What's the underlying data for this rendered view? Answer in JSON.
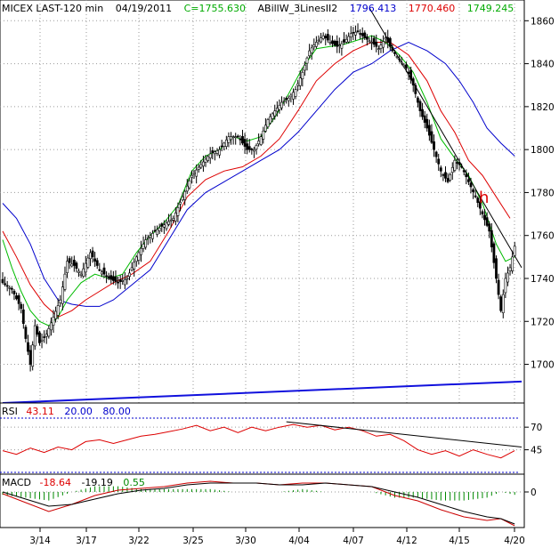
{
  "header": {
    "symbol_label": "MICEX LAST-120 min",
    "date": "04/19/2011",
    "close_text": "C=1755.630",
    "indicator_name": "ABillW_3LinesII2",
    "line_values": [
      "1796.413",
      "1770.460",
      "1749.245"
    ]
  },
  "rsi_header": {
    "name": "RSI",
    "value": "43.11",
    "low": "20.00",
    "high": "80.00"
  },
  "macd_header": {
    "name": "MACD",
    "v1": "-18.64",
    "v2": "-19.19",
    "v3": "0.55"
  },
  "annotation": "h",
  "colors": {
    "candles": "#000000",
    "blue_line": "#0000cc",
    "red_line": "#dd0000",
    "green_line": "#00bb00",
    "support_line": "#1010dd",
    "header_c": "#00aa00",
    "macd_hist": "#008800"
  },
  "chart_data": [
    {
      "type": "candlestick",
      "name": "price",
      "x_tick_labels": [
        "3/14",
        "3/17",
        "3/22",
        "3/25",
        "3/30",
        "4/04",
        "4/07",
        "4/12",
        "4/15",
        "4/20"
      ],
      "y_tick_labels": [
        "1860",
        "1840",
        "1820",
        "1800",
        "1780",
        "1760",
        "1740",
        "1720",
        "1700"
      ],
      "ylim": [
        1682,
        1868
      ],
      "close_path": [
        [
          0,
          1738
        ],
        [
          4,
          1735
        ],
        [
          8,
          1726
        ],
        [
          10,
          1712
        ],
        [
          12,
          1700
        ],
        [
          14,
          1718
        ],
        [
          16,
          1710
        ],
        [
          19,
          1714
        ],
        [
          22,
          1722
        ],
        [
          25,
          1730
        ],
        [
          28,
          1748
        ],
        [
          31,
          1746
        ],
        [
          34,
          1742
        ],
        [
          38,
          1752
        ],
        [
          42,
          1744
        ],
        [
          46,
          1740
        ],
        [
          50,
          1738
        ],
        [
          54,
          1740
        ],
        [
          58,
          1750
        ],
        [
          62,
          1758
        ],
        [
          66,
          1762
        ],
        [
          70,
          1765
        ],
        [
          74,
          1768
        ],
        [
          78,
          1778
        ],
        [
          82,
          1788
        ],
        [
          86,
          1793
        ],
        [
          90,
          1798
        ],
        [
          94,
          1800
        ],
        [
          98,
          1806
        ],
        [
          102,
          1806
        ],
        [
          106,
          1800
        ],
        [
          109,
          1800
        ],
        [
          112,
          1806
        ],
        [
          115,
          1814
        ],
        [
          118,
          1818
        ],
        [
          121,
          1822
        ],
        [
          124,
          1824
        ],
        [
          127,
          1828
        ],
        [
          130,
          1836
        ],
        [
          133,
          1846
        ],
        [
          136,
          1850
        ],
        [
          139,
          1853
        ],
        [
          142,
          1850
        ],
        [
          145,
          1848
        ],
        [
          148,
          1850
        ],
        [
          151,
          1854
        ],
        [
          154,
          1855
        ],
        [
          157,
          1852
        ],
        [
          160,
          1850
        ],
        [
          163,
          1847
        ],
        [
          166,
          1852
        ],
        [
          169,
          1846
        ],
        [
          172,
          1842
        ],
        [
          175,
          1838
        ],
        [
          178,
          1830
        ],
        [
          181,
          1818
        ],
        [
          184,
          1810
        ],
        [
          187,
          1800
        ],
        [
          190,
          1790
        ],
        [
          193,
          1785
        ],
        [
          196,
          1795
        ],
        [
          199,
          1792
        ],
        [
          202,
          1785
        ],
        [
          205,
          1778
        ],
        [
          208,
          1770
        ],
        [
          211,
          1762
        ],
        [
          214,
          1740
        ],
        [
          216,
          1725
        ],
        [
          218,
          1740
        ],
        [
          220,
          1745
        ],
        [
          222,
          1755
        ]
      ],
      "series": [
        {
          "name": "blue",
          "color": "#0000cc",
          "points": [
            [
              0,
              1775
            ],
            [
              6,
              1768
            ],
            [
              12,
              1756
            ],
            [
              18,
              1740
            ],
            [
              24,
              1730
            ],
            [
              30,
              1728
            ],
            [
              36,
              1727
            ],
            [
              42,
              1727
            ],
            [
              48,
              1730
            ],
            [
              56,
              1737
            ],
            [
              64,
              1744
            ],
            [
              72,
              1758
            ],
            [
              80,
              1772
            ],
            [
              88,
              1780
            ],
            [
              96,
              1785
            ],
            [
              104,
              1790
            ],
            [
              112,
              1795
            ],
            [
              120,
              1800
            ],
            [
              128,
              1808
            ],
            [
              136,
              1818
            ],
            [
              144,
              1828
            ],
            [
              152,
              1836
            ],
            [
              160,
              1840
            ],
            [
              168,
              1846
            ],
            [
              176,
              1850
            ],
            [
              184,
              1846
            ],
            [
              192,
              1840
            ],
            [
              198,
              1832
            ],
            [
              204,
              1822
            ],
            [
              210,
              1810
            ],
            [
              216,
              1803
            ],
            [
              222,
              1797
            ]
          ]
        },
        {
          "name": "red",
          "color": "#dd0000",
          "points": [
            [
              0,
              1762
            ],
            [
              6,
              1750
            ],
            [
              12,
              1737
            ],
            [
              18,
              1728
            ],
            [
              24,
              1722
            ],
            [
              30,
              1725
            ],
            [
              36,
              1730
            ],
            [
              42,
              1734
            ],
            [
              48,
              1738
            ],
            [
              56,
              1742
            ],
            [
              64,
              1748
            ],
            [
              72,
              1762
            ],
            [
              80,
              1778
            ],
            [
              88,
              1786
            ],
            [
              96,
              1790
            ],
            [
              104,
              1792
            ],
            [
              112,
              1797
            ],
            [
              120,
              1805
            ],
            [
              128,
              1818
            ],
            [
              136,
              1832
            ],
            [
              144,
              1840
            ],
            [
              152,
              1846
            ],
            [
              160,
              1850
            ],
            [
              168,
              1850
            ],
            [
              176,
              1844
            ],
            [
              184,
              1832
            ],
            [
              190,
              1818
            ],
            [
              196,
              1808
            ],
            [
              202,
              1795
            ],
            [
              208,
              1788
            ],
            [
              214,
              1778
            ],
            [
              220,
              1768
            ]
          ]
        },
        {
          "name": "green",
          "color": "#00bb00",
          "points": [
            [
              0,
              1758
            ],
            [
              4,
              1745
            ],
            [
              8,
              1734
            ],
            [
              12,
              1725
            ],
            [
              16,
              1720
            ],
            [
              20,
              1718
            ],
            [
              24,
              1722
            ],
            [
              28,
              1730
            ],
            [
              34,
              1738
            ],
            [
              40,
              1742
            ],
            [
              46,
              1740
            ],
            [
              52,
              1742
            ],
            [
              58,
              1752
            ],
            [
              64,
              1760
            ],
            [
              70,
              1766
            ],
            [
              76,
              1774
            ],
            [
              82,
              1790
            ],
            [
              88,
              1797
            ],
            [
              94,
              1800
            ],
            [
              100,
              1806
            ],
            [
              106,
              1804
            ],
            [
              112,
              1806
            ],
            [
              118,
              1815
            ],
            [
              124,
              1826
            ],
            [
              130,
              1838
            ],
            [
              136,
              1847
            ],
            [
              142,
              1848
            ],
            [
              148,
              1849
            ],
            [
              154,
              1851
            ],
            [
              160,
              1853
            ],
            [
              166,
              1850
            ],
            [
              172,
              1844
            ],
            [
              178,
              1836
            ],
            [
              184,
              1822
            ],
            [
              190,
              1805
            ],
            [
              196,
              1796
            ],
            [
              202,
              1788
            ],
            [
              208,
              1775
            ],
            [
              214,
              1756
            ],
            [
              218,
              1748
            ],
            [
              222,
              1750
            ]
          ]
        }
      ],
      "trendlines": [
        {
          "name": "downtrend",
          "color": "#000000",
          "from": [
            159,
            1866
          ],
          "to": [
            225,
            1745
          ]
        },
        {
          "name": "support",
          "color": "#1010dd",
          "from": [
            0,
            1682
          ],
          "to": [
            225,
            1692
          ]
        }
      ],
      "annotations": [
        {
          "text": "h",
          "x": 213,
          "y": 1785,
          "color": "#dd0000"
        }
      ]
    },
    {
      "type": "line",
      "name": "RSI",
      "y_tick_labels": [
        "70",
        "45"
      ],
      "ylim": [
        20,
        80
      ],
      "levels": [
        80,
        20
      ],
      "points": [
        [
          0,
          44
        ],
        [
          6,
          40
        ],
        [
          12,
          47
        ],
        [
          18,
          42
        ],
        [
          24,
          48
        ],
        [
          30,
          45
        ],
        [
          36,
          54
        ],
        [
          42,
          56
        ],
        [
          48,
          52
        ],
        [
          54,
          56
        ],
        [
          60,
          60
        ],
        [
          66,
          62
        ],
        [
          72,
          65
        ],
        [
          78,
          68
        ],
        [
          84,
          72
        ],
        [
          90,
          66
        ],
        [
          96,
          70
        ],
        [
          102,
          64
        ],
        [
          108,
          70
        ],
        [
          114,
          66
        ],
        [
          120,
          70
        ],
        [
          126,
          73
        ],
        [
          132,
          70
        ],
        [
          138,
          72
        ],
        [
          144,
          67
        ],
        [
          150,
          70
        ],
        [
          156,
          66
        ],
        [
          162,
          60
        ],
        [
          168,
          62
        ],
        [
          174,
          55
        ],
        [
          180,
          45
        ],
        [
          186,
          40
        ],
        [
          192,
          44
        ],
        [
          198,
          38
        ],
        [
          204,
          45
        ],
        [
          210,
          40
        ],
        [
          216,
          36
        ],
        [
          222,
          44
        ]
      ],
      "trendline": {
        "from": [
          123,
          76
        ],
        "to": [
          225,
          48
        ]
      }
    },
    {
      "type": "line",
      "name": "MACD",
      "y_tick_labels": [
        "0"
      ],
      "ylim": [
        -20,
        10
      ],
      "series": [
        {
          "name": "MACD",
          "color": "#cc0000",
          "points": [
            [
              0,
              -1
            ],
            [
              10,
              -6
            ],
            [
              20,
              -11
            ],
            [
              30,
              -7
            ],
            [
              40,
              -2
            ],
            [
              50,
              1
            ],
            [
              60,
              2
            ],
            [
              70,
              3
            ],
            [
              80,
              5
            ],
            [
              90,
              6
            ],
            [
              100,
              5
            ],
            [
              110,
              5
            ],
            [
              120,
              4
            ],
            [
              130,
              5
            ],
            [
              140,
              5
            ],
            [
              150,
              4
            ],
            [
              160,
              3
            ],
            [
              170,
              -2
            ],
            [
              180,
              -5
            ],
            [
              190,
              -10
            ],
            [
              200,
              -14
            ],
            [
              210,
              -16
            ],
            [
              216,
              -15
            ],
            [
              222,
              -19
            ]
          ]
        },
        {
          "name": "Signal",
          "color": "#000000",
          "points": [
            [
              0,
              0
            ],
            [
              10,
              -4
            ],
            [
              20,
              -8
            ],
            [
              30,
              -7
            ],
            [
              40,
              -4
            ],
            [
              50,
              -1
            ],
            [
              60,
              1
            ],
            [
              70,
              2
            ],
            [
              80,
              4
            ],
            [
              90,
              5
            ],
            [
              100,
              5
            ],
            [
              110,
              5
            ],
            [
              120,
              4
            ],
            [
              130,
              4
            ],
            [
              140,
              5
            ],
            [
              150,
              4
            ],
            [
              160,
              3
            ],
            [
              170,
              0
            ],
            [
              180,
              -3
            ],
            [
              190,
              -7
            ],
            [
              200,
              -11
            ],
            [
              210,
              -14
            ],
            [
              216,
              -15
            ],
            [
              222,
              -18
            ]
          ]
        }
      ]
    }
  ]
}
